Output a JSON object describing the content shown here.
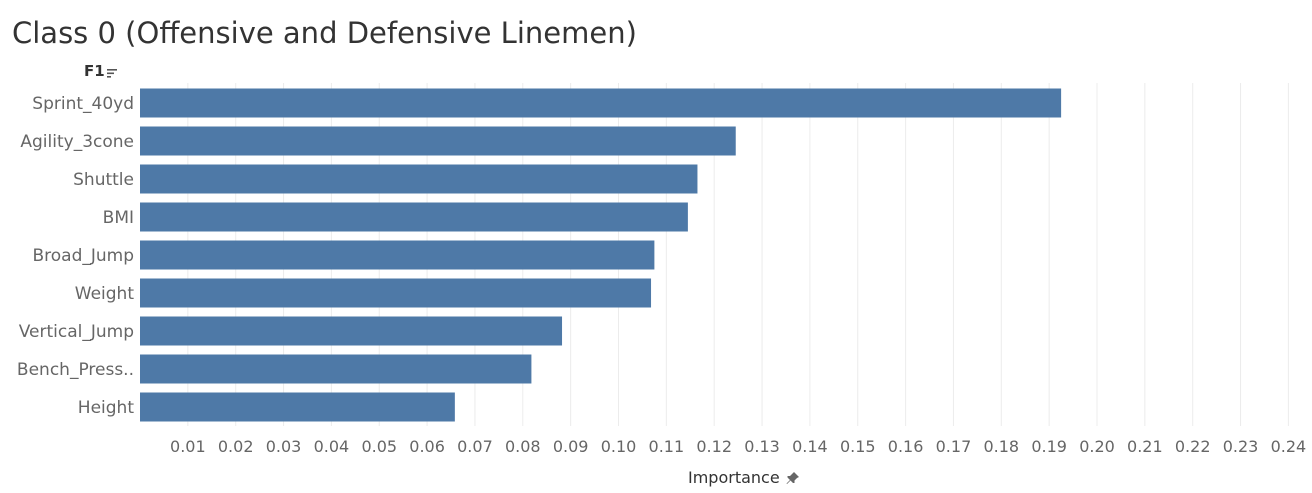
{
  "title": "Class 0 (Offensive and Defensive Linemen)",
  "field_header": "F1",
  "axis_title": "Importance",
  "colors": {
    "bar": "#4e79a7",
    "grid": "#ececec",
    "text": "#666666"
  },
  "icons": {
    "sort": "sort-descending-icon",
    "pin": "pin-icon"
  },
  "chart_data": {
    "type": "bar",
    "orientation": "horizontal",
    "categories": [
      "Sprint_40yd",
      "Agility_3cone",
      "Shuttle",
      "BMI",
      "Broad_Jump",
      "Weight",
      "Vertical_Jump",
      "Bench_Press..",
      "Height"
    ],
    "values": [
      0.1925,
      0.1245,
      0.1165,
      0.1145,
      0.1075,
      0.1068,
      0.0882,
      0.0818,
      0.0658
    ],
    "xlabel": "Importance",
    "ylabel": "F1",
    "xlim": [
      0,
      0.245
    ],
    "xticks": [
      "0.01",
      "0.02",
      "0.03",
      "0.04",
      "0.05",
      "0.06",
      "0.07",
      "0.08",
      "0.09",
      "0.10",
      "0.11",
      "0.12",
      "0.13",
      "0.14",
      "0.15",
      "0.16",
      "0.17",
      "0.18",
      "0.19",
      "0.20",
      "0.21",
      "0.22",
      "0.23",
      "0.24"
    ],
    "grid": "vertical"
  }
}
